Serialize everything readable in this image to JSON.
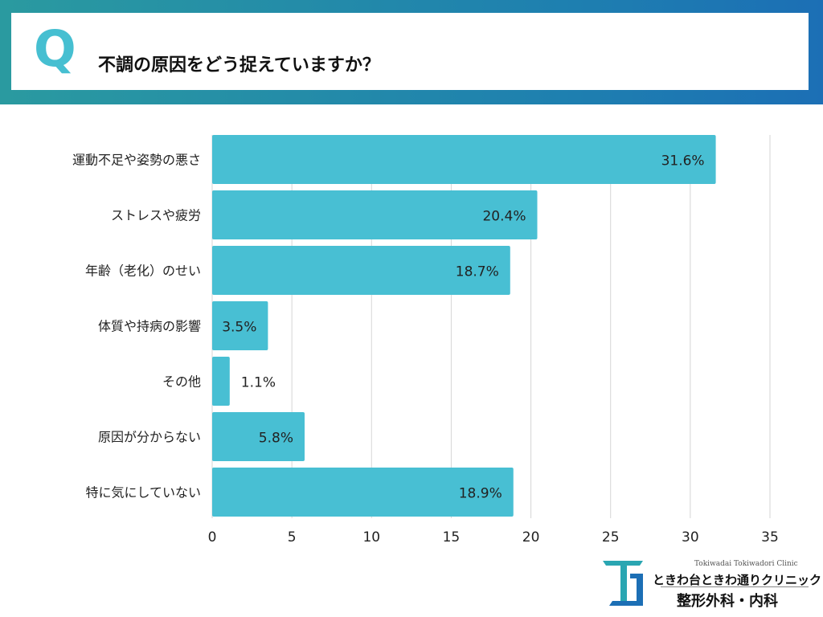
{
  "header": {
    "q_label": "Q",
    "question": "不調の原因をどう捉えていますか？"
  },
  "chart_data": {
    "type": "bar",
    "orientation": "horizontal",
    "categories": [
      "運動不足や姿勢の悪さ",
      "ストレスや疲労",
      "年齢（老化）のせい",
      "体質や持病の影響",
      "その他",
      "原因が分からない",
      "特に気にしていない"
    ],
    "values": [
      31.6,
      20.4,
      18.7,
      3.5,
      1.1,
      5.8,
      18.9
    ],
    "value_labels": [
      "31.6%",
      "20.4%",
      "18.7%",
      "3.5%",
      "1.1%",
      "5.8%",
      "18.9%"
    ],
    "xticks": [
      "0",
      "5",
      "10",
      "15",
      "20",
      "25",
      "30",
      "35"
    ],
    "xlim": [
      0,
      35
    ],
    "grid": true,
    "bar_color": "#48bfd3"
  },
  "logo": {
    "subtitle": "Tokiwadai Tokiwadori Clinic",
    "name": "ときわ台ときわ通りクリニック",
    "department": "整形外科・内科"
  },
  "colors": {
    "accent": "#46bfd1",
    "band_start": "#2a9aa0",
    "band_end": "#1c6fb5"
  }
}
